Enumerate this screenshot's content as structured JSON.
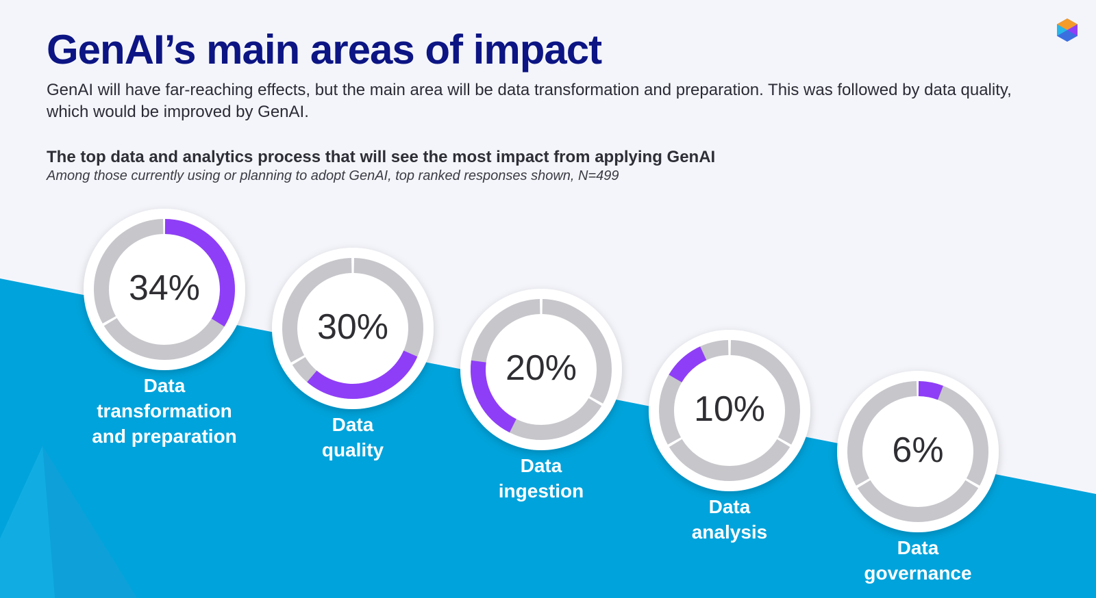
{
  "header": {
    "title": "GenAI’s main areas of impact",
    "subtitle": "GenAI will have far-reaching effects, but the main area will be data transformation and preparation. This was followed by data quality, which would be improved by GenAI."
  },
  "logo": {
    "icon": "hexagon-logo-icon"
  },
  "chart_data": {
    "type": "donut",
    "title": "The top data and analytics process that will see the most impact from applying GenAI",
    "note": "Among those currently using or planning to adopt GenAI, top ranked responses shown, N=499",
    "categories": [
      "Data transformation and preparation",
      "Data quality",
      "Data ingestion",
      "Data analysis",
      "Data governance"
    ],
    "label_lines": [
      [
        "Data",
        "transformation",
        "and preparation"
      ],
      [
        "Data",
        "quality"
      ],
      [
        "Data",
        "ingestion"
      ],
      [
        "Data",
        "analysis"
      ],
      [
        "Data",
        "governance"
      ]
    ],
    "values": [
      34,
      30,
      20,
      10,
      6
    ],
    "value_labels": [
      "34%",
      "30%",
      "20%",
      "10%",
      "6%"
    ],
    "highlight_start_deg": [
      0,
      113,
      206,
      300,
      0
    ],
    "unit": "%"
  },
  "colors": {
    "title": "#0c1583",
    "accent": "#8f3ef7",
    "track": "#c7c6cb",
    "band": "#00a3db",
    "background": "#f4f5fa"
  }
}
